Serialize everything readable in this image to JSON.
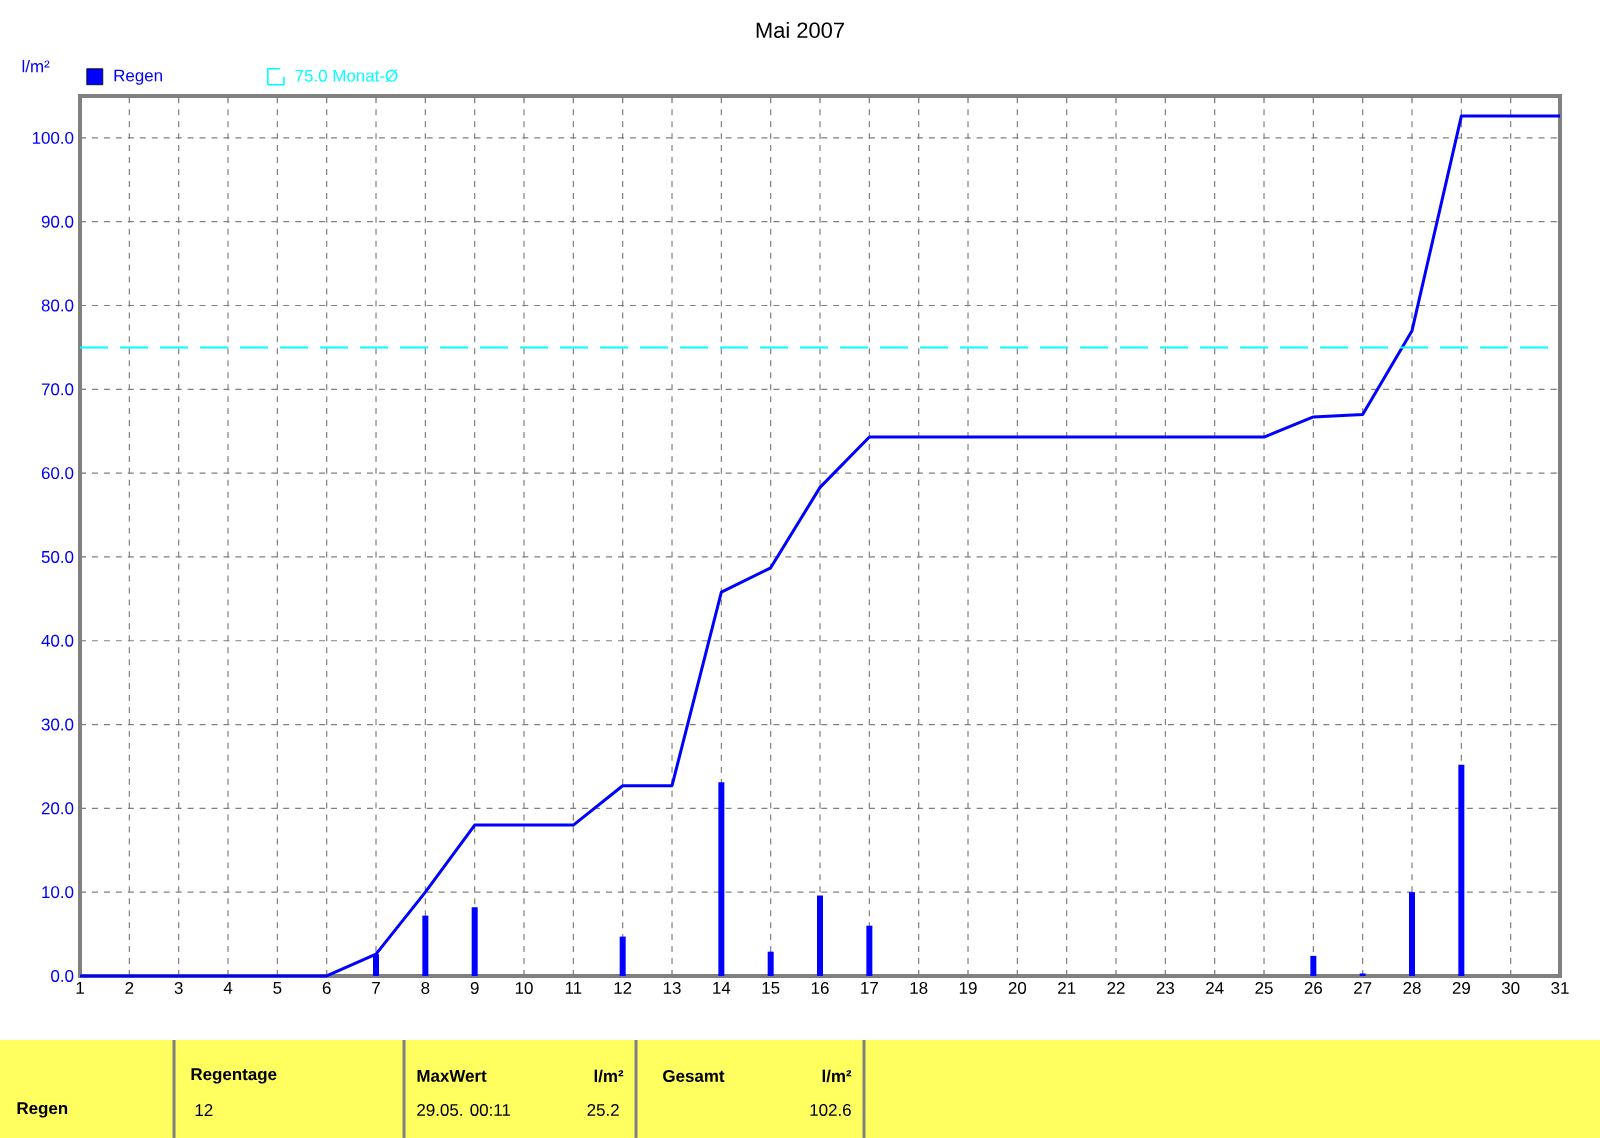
{
  "chart_data": {
    "type": "bar",
    "title": "Mai 2007",
    "ylabel": "l/m²",
    "x": [
      1,
      2,
      3,
      4,
      5,
      6,
      7,
      8,
      9,
      10,
      11,
      12,
      13,
      14,
      15,
      16,
      17,
      18,
      19,
      20,
      21,
      22,
      23,
      24,
      25,
      26,
      27,
      28,
      29,
      30,
      31
    ],
    "series": [
      {
        "name": "Regen",
        "color": "#0000ff",
        "values": [
          null,
          null,
          null,
          null,
          null,
          null,
          2.6,
          7.2,
          8.2,
          null,
          null,
          4.7,
          null,
          23.1,
          2.9,
          9.6,
          6.0,
          null,
          null,
          null,
          null,
          null,
          null,
          null,
          null,
          2.4,
          0.3,
          10.0,
          25.2,
          null,
          null
        ]
      },
      {
        "type": "line",
        "color": "#0000ff",
        "values": [
          0,
          0,
          0,
          0,
          0,
          0,
          2.6,
          10.0,
          18.0,
          18.0,
          18.0,
          22.7,
          22.7,
          45.8,
          48.7,
          58.3,
          64.3,
          64.3,
          64.3,
          64.3,
          64.3,
          64.3,
          64.3,
          64.3,
          64.3,
          66.7,
          67.0,
          77.0,
          102.6,
          102.6,
          102.6
        ]
      }
    ],
    "xlim": [
      1,
      31
    ],
    "xticks": [
      1,
      2,
      3,
      4,
      5,
      6,
      7,
      8,
      9,
      10,
      11,
      12,
      13,
      14,
      15,
      16,
      17,
      18,
      19,
      20,
      21,
      22,
      23,
      24,
      25,
      26,
      27,
      28,
      29,
      30,
      31
    ],
    "ylim": [
      0,
      105
    ],
    "yticks": [
      {
        "value": 0,
        "label": "0.0"
      },
      {
        "value": 10,
        "label": "10.0"
      },
      {
        "value": 20,
        "label": "20.0"
      },
      {
        "value": 30,
        "label": "30.0"
      },
      {
        "value": 40,
        "label": "40.0"
      },
      {
        "value": 50,
        "label": "50.0"
      },
      {
        "value": 60,
        "label": "60.0"
      },
      {
        "value": 70,
        "label": "70.0"
      },
      {
        "value": 80,
        "label": "80.0"
      },
      {
        "value": 90,
        "label": "90.0"
      },
      {
        "value": 100,
        "label": "100.0"
      }
    ],
    "ref_lines": [
      {
        "axis": "y",
        "value": 75,
        "label": "75.0 Monat-Ø",
        "color": "#00ffff",
        "line_style": "dashed"
      }
    ],
    "grid": true,
    "legend": "top left",
    "annotations": [
      "Regen",
      "Regentage",
      "12",
      "MaxWert",
      "l/m²",
      "29.05.  00:11",
      "25.2",
      "Gesamt",
      "l/m²",
      "102.6"
    ]
  }
}
